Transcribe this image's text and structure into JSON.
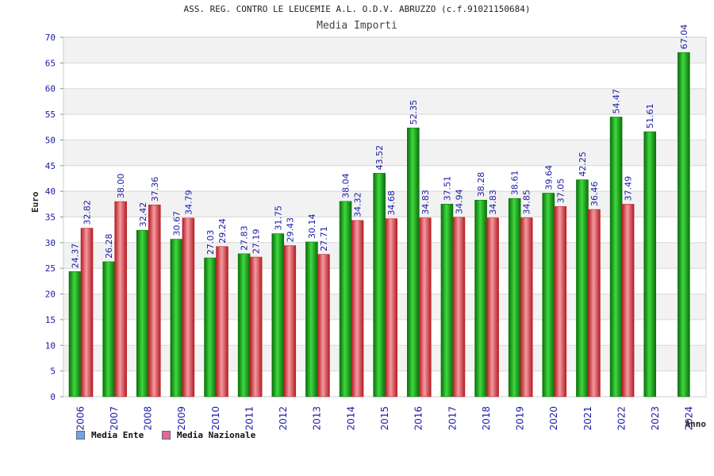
{
  "title": "ASS. REG. CONTRO LE LEUCEMIE A.L. O.D.V. ABRUZZO (c.f.91021150684)",
  "subtitle": "Media Importi",
  "chart_data": {
    "type": "bar",
    "title": "ASS. REG. CONTRO LE LEUCEMIE A.L. O.D.V. ABRUZZO (c.f.91021150684)",
    "subtitle": "Media Importi",
    "xlabel": "Anno",
    "ylabel": "Euro",
    "ylim": [
      0,
      70
    ],
    "yticks": [
      0,
      5,
      10,
      15,
      20,
      25,
      30,
      35,
      40,
      45,
      50,
      55,
      60,
      65,
      70
    ],
    "grid": true,
    "legend_position": "bottom-left",
    "categories": [
      "2006",
      "2007",
      "2008",
      "2009",
      "2010",
      "2011",
      "2012",
      "2013",
      "2014",
      "2015",
      "2016",
      "2017",
      "2018",
      "2019",
      "2020",
      "2021",
      "2022",
      "2023",
      "2024"
    ],
    "series": [
      {
        "name": "Media Ente",
        "color": "#16b416",
        "legend_color": "#6aa6e8",
        "values": [
          24.37,
          26.28,
          32.42,
          30.67,
          27.03,
          27.83,
          31.75,
          30.14,
          38.04,
          43.52,
          52.35,
          37.51,
          38.28,
          38.61,
          39.64,
          42.25,
          54.47,
          51.61,
          67.04
        ],
        "labels": [
          "24.37",
          "26.28",
          "32.42",
          "30.67",
          "27.03",
          "27.83",
          "31.75",
          "30.14",
          "38.04",
          "43.52",
          "52.35",
          "37.51",
          "38.28",
          "38.61",
          "39.64",
          "42.25",
          "54.47",
          "51.61",
          "67.04"
        ]
      },
      {
        "name": "Media Nazionale",
        "color": "#e0424a",
        "legend_color": "#e06aa0",
        "values": [
          32.82,
          38.0,
          37.36,
          34.79,
          29.24,
          27.19,
          29.43,
          27.71,
          34.32,
          34.68,
          34.83,
          34.94,
          34.83,
          34.85,
          37.05,
          36.46,
          37.49,
          null,
          null
        ],
        "labels": [
          "32.82",
          "38.00",
          "37.36",
          "34.79",
          "29.24",
          "27.19",
          "29.43",
          "27.71",
          "34.32",
          "34.68",
          "34.83",
          "34.94",
          "34.83",
          "34.85",
          "37.05",
          "36.46",
          "37.49",
          null,
          null
        ]
      }
    ]
  }
}
